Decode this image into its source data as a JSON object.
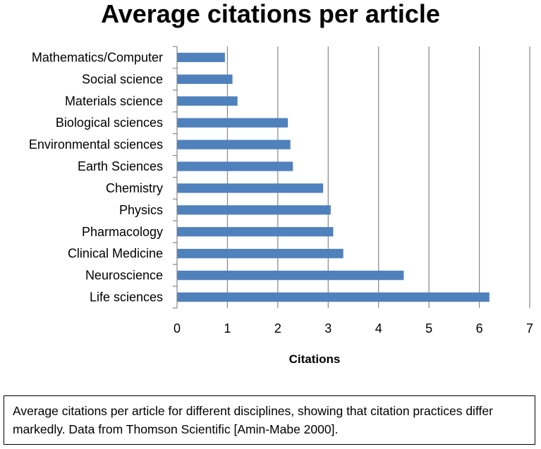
{
  "chart_data": {
    "type": "bar",
    "orientation": "horizontal",
    "title": "Average citations per article",
    "xlabel": "Citations",
    "ylabel": "",
    "categories": [
      "Mathematics/Computer",
      "Social science",
      "Materials science",
      "Biological sciences",
      "Environmental sciences",
      "Earth Sciences",
      "Chemistry",
      "Physics",
      "Pharmacology",
      "Clinical Medicine",
      "Neuroscience",
      "Life sciences"
    ],
    "values": [
      0.95,
      1.1,
      1.2,
      2.2,
      2.25,
      2.3,
      2.9,
      3.05,
      3.1,
      3.3,
      4.5,
      6.2
    ],
    "xlim": [
      0,
      7
    ],
    "xticks": [
      0,
      1,
      2,
      3,
      4,
      5,
      6,
      7
    ],
    "grid": "vertical",
    "legend": "none",
    "bar_color": "#4f81bd"
  },
  "caption": "Average citations per article for different disciplines, showing that citation practices differ markedly. Data from Thomson Scientific [Amin-Mabe 2000]."
}
